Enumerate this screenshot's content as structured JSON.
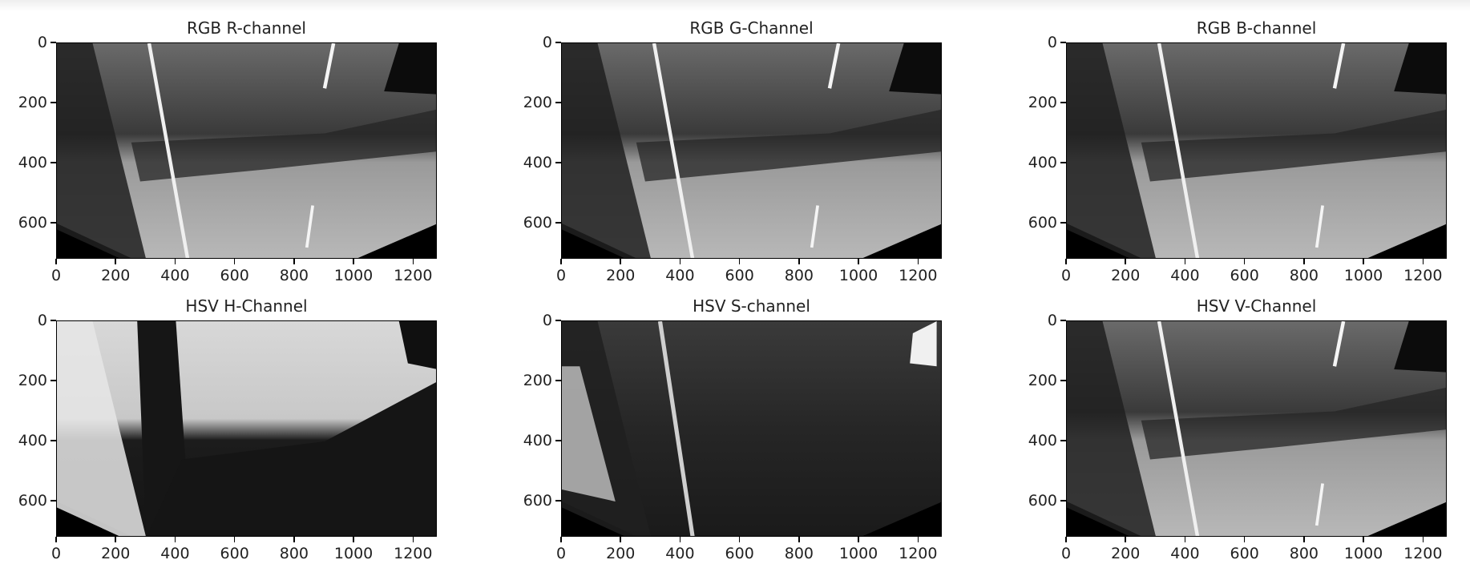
{
  "figure": {
    "panels": [
      {
        "id": "r",
        "title": "RGB R-channel",
        "style": "rgb"
      },
      {
        "id": "g",
        "title": "RGB G-Channel",
        "style": "rgb"
      },
      {
        "id": "b",
        "title": "RGB B-channel",
        "style": "rgb"
      },
      {
        "id": "h",
        "title": "HSV H-Channel",
        "style": "hue"
      },
      {
        "id": "s",
        "title": "HSV S-channel",
        "style": "sat"
      },
      {
        "id": "v",
        "title": "HSV V-Channel",
        "style": "rgb"
      }
    ],
    "x_ticks": [
      "0",
      "200",
      "400",
      "600",
      "800",
      "1000",
      "1200"
    ],
    "y_ticks": [
      "0",
      "200",
      "400",
      "600"
    ],
    "x_range": [
      0,
      1280
    ],
    "y_range": [
      0,
      720
    ],
    "colormap": "gray"
  }
}
